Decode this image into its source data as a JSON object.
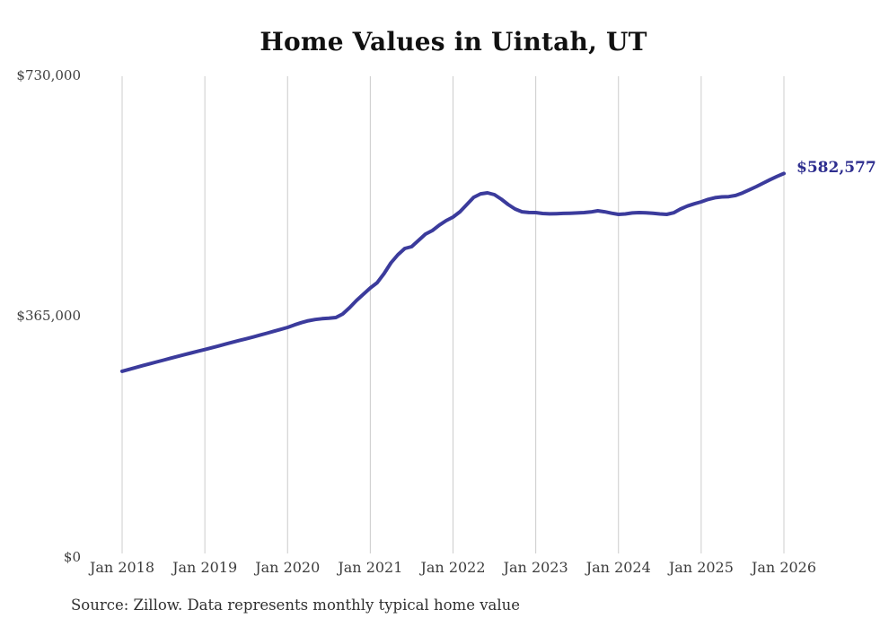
{
  "source_note": "Source: Zillow. Data represents monthly typical home value",
  "colors": {
    "line": "#3b3b9c",
    "end_label": "#2e2e8f",
    "grid": "#cccccc",
    "axis_text": "#3d3d3d",
    "title_text": "#111111"
  },
  "chart_data": {
    "type": "line",
    "title": "Home Values in Uintah, UT",
    "xlabel": "",
    "ylabel": "",
    "ylim": [
      0,
      730000
    ],
    "grid": "vertical-only",
    "legend": "none",
    "x_tick_labels": [
      "Jan 2018",
      "Jan 2019",
      "Jan 2020",
      "Jan 2021",
      "Jan 2022",
      "Jan 2023",
      "Jan 2024",
      "Jan 2025",
      "Jan 2026"
    ],
    "y_tick_labels": [
      "$0",
      "$365,000",
      "$730,000"
    ],
    "x_start": "Jan 2018",
    "x_interval": "monthly",
    "points_per_year": 12,
    "end_point_label": "$582,577",
    "end_point_value": 582577,
    "values": [
      280000,
      282900,
      285800,
      288700,
      291500,
      294300,
      297100,
      299900,
      302700,
      305400,
      308100,
      310700,
      313300,
      316000,
      318800,
      321600,
      324400,
      327100,
      329800,
      332500,
      335300,
      338200,
      341200,
      344200,
      347200,
      351000,
      354500,
      357300,
      359300,
      360500,
      361200,
      362200,
      367700,
      377300,
      388300,
      397900,
      407500,
      415700,
      429500,
      446000,
      458300,
      467900,
      470600,
      480200,
      489800,
      495300,
      503500,
      510400,
      515900,
      524100,
      535100,
      546100,
      551500,
      553000,
      550200,
      543400,
      535100,
      528300,
      524100,
      523000,
      522800,
      521400,
      520900,
      521100,
      521500,
      521900,
      522300,
      522800,
      523700,
      525500,
      524100,
      521800,
      520100,
      520800,
      522300,
      522800,
      522500,
      521700,
      520800,
      520100,
      522500,
      528300,
      532800,
      536200,
      539200,
      543000,
      545600,
      546800,
      547200,
      549000,
      552800,
      557600,
      562600,
      567900,
      573200,
      578100,
      582577
    ]
  }
}
